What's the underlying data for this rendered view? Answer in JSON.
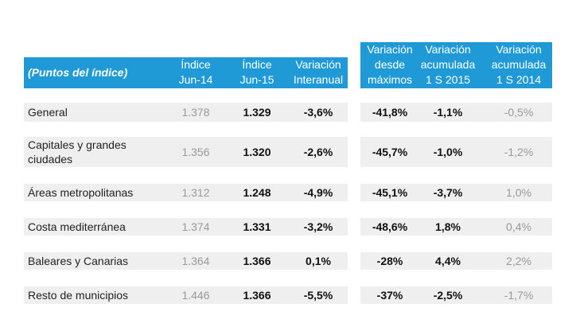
{
  "table": {
    "header": [
      [
        "(Puntos del índice)"
      ],
      [
        "Índice",
        "Jun-14"
      ],
      [
        "Índice",
        "Jun-15"
      ],
      [
        "Variación",
        "Interanual"
      ],
      [
        "Variación",
        "desde",
        "máximos"
      ],
      [
        "Variación",
        "acumulada",
        "1 S 2015"
      ],
      [
        "Variación",
        "acumulada",
        "1 S 2014"
      ]
    ],
    "rows": [
      [
        "General",
        "1.378",
        "1.329",
        "-3,6%",
        "-41,8%",
        "-1,1%",
        "-0,5%"
      ],
      [
        "Capitales y grandes ciudades",
        "1.356",
        "1.320",
        "-2,6%",
        "-45,7%",
        "-1,0%",
        "-1,2%"
      ],
      [
        "Áreas metropolitanas",
        "1.312",
        "1.248",
        "-4,9%",
        "-45,1%",
        "-3,7%",
        "1,0%"
      ],
      [
        "Costa mediterránea",
        "1.374",
        "1.331",
        "-3,2%",
        "-48,6%",
        "1,8%",
        "0,4%"
      ],
      [
        "Baleares y Canarias",
        "1.364",
        "1.366",
        "0,1%",
        "-28%",
        "4,4%",
        "2,2%"
      ],
      [
        "Resto de municipios",
        "1.446",
        "1.366",
        "-5,5%",
        "-37%",
        "-2,5%",
        "-1,7%"
      ]
    ]
  }
}
